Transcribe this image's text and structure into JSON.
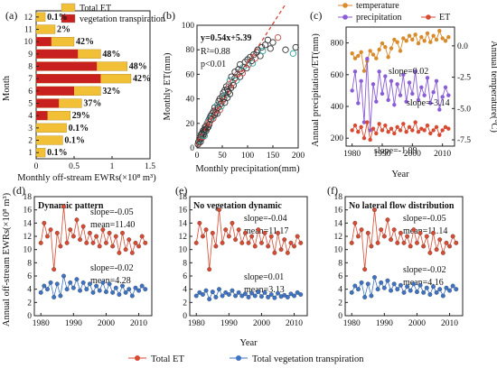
{
  "panels": {
    "a": {
      "label": "(a)",
      "legend": [
        {
          "name": "Total ET",
          "color": "#f2c037"
        },
        {
          "name": "vegetation transpiration",
          "color": "#c8201e"
        }
      ],
      "ylabel": "Month",
      "xlabel": "Monthly off-stream EWRs(×10⁸ m³)"
    },
    "b": {
      "label": "(b)",
      "equation": "y=0.54x+5.39",
      "r2": "R²=0.88",
      "p": "p<0.01",
      "xlabel": "Monthly precipitation(mm)",
      "ylabel": "Monthly ET(mm)"
    },
    "c": {
      "label": "(c)",
      "legend": [
        {
          "name": "temperature",
          "color": "#d98a2b"
        },
        {
          "name": "precipitation",
          "color": "#8a5cd6"
        },
        {
          "name": "ET",
          "color": "#d84a32"
        }
      ],
      "xlabel": "Year",
      "ylabel_left": "Annual precipitation/ET(mm)",
      "ylabel_right": "Annual temperature(°C)",
      "slopes": [
        "slope=0.02",
        "slope=-3.14",
        "slope=-1.09"
      ]
    },
    "d": {
      "label": "(d)",
      "title": "Dynamic pattern",
      "et_slope": "slope=-0.05",
      "et_mean": "mean=11.40",
      "vt_slope": "slope=-0.02",
      "vt_mean": "mean=4.28"
    },
    "e": {
      "label": "(e)",
      "title": "No vegetation dynamic",
      "et_slope": "slope=-0.04",
      "et_mean": "mean=11.17",
      "vt_slope": "slope=0.01",
      "vt_mean": "mean=3.13"
    },
    "f": {
      "label": "(f)",
      "title": "No lateral flow distribution",
      "et_slope": "slope=-0.05",
      "et_mean": "mean=11.14",
      "vt_slope": "slope=-0.02",
      "vt_mean": "mean=4.16"
    }
  },
  "bottom": {
    "ylabel": "Annual off-stream EWRs(×10⁸ m³)",
    "xlabel": "Year",
    "legend": [
      {
        "name": "Total ET",
        "color": "#d84a32"
      },
      {
        "name": "Total vegetation transpiration",
        "color": "#3d73c4"
      }
    ]
  },
  "chart_data": [
    {
      "id": "a",
      "type": "bar",
      "orientation": "horizontal",
      "categories": [
        "1",
        "2",
        "3",
        "4",
        "5",
        "6",
        "7",
        "8",
        "9",
        "10",
        "11",
        "12"
      ],
      "series": [
        {
          "name": "Total ET",
          "values": [
            0.12,
            0.35,
            0.4,
            0.45,
            0.6,
            0.85,
            1.25,
            1.2,
            0.85,
            0.5,
            0.25,
            0.12
          ]
        },
        {
          "name": "vegetation transpiration",
          "values": [
            0.0,
            0.0,
            0.0,
            0.15,
            0.3,
            0.5,
            0.85,
            0.8,
            0.55,
            0.2,
            0.0,
            0.0
          ]
        }
      ],
      "bar_labels": [
        "0.1%",
        "0.1%",
        "0.1%",
        "29%",
        "37%",
        "32%",
        "42%",
        "48%",
        "48%",
        "42%",
        "2%",
        "0.1%"
      ],
      "xlim": [
        0,
        1.5
      ],
      "xticks": [
        "0",
        "0.5",
        "1",
        "1.5"
      ],
      "yticks": [
        "1",
        "2",
        "3",
        "4",
        "5",
        "6",
        "7",
        "8",
        "9",
        "10",
        "11",
        "12"
      ],
      "xlabel": "Monthly off-stream EWRs(×10⁸ m³)",
      "ylabel": "Month"
    },
    {
      "id": "b",
      "type": "scatter",
      "x": [
        2,
        3,
        4,
        5,
        5,
        6,
        7,
        8,
        8,
        9,
        10,
        10,
        12,
        12,
        13,
        14,
        15,
        15,
        16,
        18,
        18,
        20,
        20,
        22,
        22,
        24,
        25,
        25,
        27,
        28,
        30,
        30,
        32,
        33,
        35,
        35,
        37,
        38,
        40,
        40,
        42,
        43,
        45,
        45,
        47,
        48,
        50,
        50,
        52,
        53,
        55,
        55,
        57,
        58,
        60,
        60,
        62,
        63,
        65,
        65,
        67,
        68,
        70,
        72,
        75,
        75,
        78,
        80,
        82,
        85,
        85,
        88,
        90,
        92,
        95,
        98,
        100,
        102,
        105,
        108,
        110,
        112,
        115,
        118,
        120,
        125,
        128,
        130,
        135,
        140,
        145,
        150,
        160,
        175,
        190,
        195
      ],
      "y": [
        3,
        5,
        4,
        6,
        8,
        7,
        5,
        9,
        11,
        8,
        10,
        12,
        9,
        14,
        11,
        13,
        15,
        10,
        17,
        14,
        18,
        16,
        20,
        17,
        22,
        19,
        24,
        21,
        26,
        23,
        28,
        25,
        24,
        30,
        27,
        33,
        29,
        31,
        35,
        28,
        33,
        38,
        31,
        40,
        36,
        34,
        42,
        38,
        45,
        40,
        37,
        47,
        43,
        50,
        41,
        48,
        46,
        52,
        44,
        55,
        49,
        58,
        53,
        51,
        57,
        62,
        55,
        60,
        64,
        58,
        68,
        63,
        61,
        66,
        70,
        65,
        72,
        68,
        74,
        71,
        69,
        76,
        73,
        78,
        80,
        75,
        82,
        79,
        84,
        88,
        81,
        86,
        90,
        80,
        77,
        82
      ],
      "xlim": [
        0,
        200
      ],
      "ylim": [
        0,
        100
      ],
      "xticks": [
        "0",
        "50",
        "100",
        "150",
        "200"
      ],
      "yticks": [
        "0",
        "20",
        "40",
        "60",
        "80",
        "100"
      ],
      "fit": {
        "slope": 0.54,
        "intercept": 5.39
      }
    },
    {
      "id": "c",
      "type": "line",
      "x": [
        1980,
        1981,
        1982,
        1983,
        1984,
        1985,
        1986,
        1987,
        1988,
        1989,
        1990,
        1991,
        1992,
        1993,
        1994,
        1995,
        1996,
        1997,
        1998,
        1999,
        2000,
        2001,
        2002,
        2003,
        2004,
        2005,
        2006,
        2007,
        2008,
        2009,
        2010,
        2011,
        2012
      ],
      "series": [
        {
          "name": "temperature",
          "axis": "right",
          "values": [
            -0.6,
            -1.0,
            -0.8,
            -0.5,
            -2.0,
            -1.2,
            -0.4,
            -0.7,
            -1.0,
            -0.3,
            0.2,
            -0.1,
            -0.9,
            -0.2,
            0.5,
            0.3,
            -0.4,
            0.6,
            0.4,
            0.8,
            0.5,
            0.9,
            0.2,
            0.7,
            0.4,
            1.0,
            0.3,
            0.8,
            0.5,
            1.2,
            0.6,
            0.4,
            0.7
          ]
        },
        {
          "name": "precipitation",
          "axis": "left",
          "values": [
            500,
            620,
            420,
            560,
            300,
            700,
            250,
            540,
            430,
            620,
            480,
            590,
            440,
            560,
            410,
            540,
            470,
            600,
            430,
            550,
            480,
            620,
            440,
            520,
            470,
            580,
            420,
            490,
            560,
            380,
            460,
            520,
            470
          ]
        },
        {
          "name": "ET",
          "axis": "left",
          "values": [
            250,
            280,
            240,
            270,
            200,
            300,
            190,
            260,
            230,
            290,
            250,
            280,
            240,
            260,
            230,
            270,
            250,
            290,
            240,
            270,
            250,
            300,
            240,
            260,
            250,
            280,
            230,
            250,
            270,
            220,
            250,
            270,
            260
          ]
        }
      ],
      "ylim_left": [
        150,
        900
      ],
      "ylim_right": [
        -8,
        1.5
      ],
      "xticks": [
        "1980",
        "1990",
        "2000",
        "2010"
      ],
      "yticks_left": [
        "200",
        "400",
        "600",
        "800"
      ],
      "yticks_right": [
        "0.0",
        "-2.5",
        "-5.0",
        "-7.5"
      ],
      "xlabel": "Year"
    },
    {
      "id": "d",
      "type": "line",
      "x": [
        1980,
        1981,
        1982,
        1983,
        1984,
        1985,
        1986,
        1987,
        1988,
        1989,
        1990,
        1991,
        1992,
        1993,
        1994,
        1995,
        1996,
        1997,
        1998,
        1999,
        2000,
        2001,
        2002,
        2003,
        2004,
        2005,
        2006,
        2007,
        2008,
        2009,
        2010,
        2011,
        2012
      ],
      "series": [
        {
          "name": "Total ET",
          "values": [
            11.0,
            14.0,
            12.0,
            13.0,
            7.0,
            12.5,
            10.5,
            16.5,
            11.0,
            13.0,
            12.0,
            14.5,
            11.5,
            13.5,
            11.0,
            12.5,
            11.0,
            12.0,
            10.5,
            13.0,
            11.0,
            12.5,
            10.5,
            12.0,
            9.5,
            12.5,
            10.0,
            11.5,
            9.5,
            11.0,
            10.5,
            12.0,
            11.0
          ]
        },
        {
          "name": "Total vegetation transpiration",
          "values": [
            3.5,
            4.5,
            4.0,
            5.0,
            2.8,
            4.8,
            3.0,
            6.0,
            4.0,
            5.0,
            4.2,
            5.5,
            3.8,
            5.0,
            4.0,
            4.8,
            3.5,
            4.5,
            3.8,
            5.0,
            3.6,
            4.8,
            3.5,
            4.2,
            3.2,
            4.5,
            3.5,
            4.0,
            3.0,
            4.2,
            3.8,
            4.5,
            4.0
          ]
        }
      ],
      "ylim": [
        0,
        18
      ],
      "yticks": [
        "0",
        "2",
        "4",
        "6",
        "8",
        "10",
        "12",
        "14",
        "16",
        "18"
      ],
      "xticks": [
        "1980",
        "1990",
        "2000",
        "2010"
      ]
    },
    {
      "id": "e",
      "type": "line",
      "x": [
        1980,
        1981,
        1982,
        1983,
        1984,
        1985,
        1986,
        1987,
        1988,
        1989,
        1990,
        1991,
        1992,
        1993,
        1994,
        1995,
        1996,
        1997,
        1998,
        1999,
        2000,
        2001,
        2002,
        2003,
        2004,
        2005,
        2006,
        2007,
        2008,
        2009,
        2010,
        2011,
        2012
      ],
      "series": [
        {
          "name": "Total ET",
          "values": [
            11.0,
            14.0,
            12.0,
            13.0,
            7.0,
            12.5,
            10.5,
            16.0,
            11.0,
            13.0,
            12.0,
            14.0,
            11.5,
            13.0,
            11.0,
            12.5,
            11.0,
            12.0,
            10.5,
            13.0,
            11.0,
            12.5,
            10.5,
            12.0,
            9.5,
            12.5,
            10.0,
            11.5,
            9.5,
            11.0,
            10.5,
            12.0,
            11.0
          ]
        },
        {
          "name": "Total vegetation transpiration",
          "values": [
            3.0,
            3.5,
            3.2,
            3.8,
            2.5,
            3.6,
            2.8,
            4.0,
            3.0,
            3.5,
            3.2,
            3.8,
            3.0,
            3.5,
            3.0,
            3.3,
            2.8,
            3.4,
            3.0,
            3.6,
            2.9,
            3.5,
            2.8,
            3.2,
            2.7,
            3.4,
            2.9,
            3.1,
            2.8,
            3.3,
            3.0,
            3.5,
            3.2
          ]
        }
      ],
      "ylim": [
        0,
        18
      ],
      "yticks": [
        "0",
        "2",
        "4",
        "6",
        "8",
        "10",
        "12",
        "14",
        "16",
        "18"
      ],
      "xticks": [
        "1980",
        "1990",
        "2000",
        "2010"
      ]
    },
    {
      "id": "f",
      "type": "line",
      "x": [
        1980,
        1981,
        1982,
        1983,
        1984,
        1985,
        1986,
        1987,
        1988,
        1989,
        1990,
        1991,
        1992,
        1993,
        1994,
        1995,
        1996,
        1997,
        1998,
        1999,
        2000,
        2001,
        2002,
        2003,
        2004,
        2005,
        2006,
        2007,
        2008,
        2009,
        2010,
        2011,
        2012
      ],
      "series": [
        {
          "name": "Total ET",
          "values": [
            11.0,
            14.0,
            12.0,
            13.0,
            7.0,
            12.5,
            10.5,
            16.0,
            11.0,
            13.0,
            12.0,
            14.5,
            11.5,
            13.0,
            11.0,
            12.5,
            11.0,
            12.0,
            10.5,
            13.0,
            11.0,
            12.5,
            10.5,
            12.0,
            9.5,
            12.5,
            10.0,
            11.5,
            9.5,
            11.0,
            10.5,
            12.0,
            11.0
          ]
        },
        {
          "name": "Total vegetation transpiration",
          "values": [
            3.5,
            4.5,
            4.0,
            5.0,
            2.8,
            4.8,
            3.0,
            5.8,
            4.0,
            5.0,
            4.2,
            5.3,
            3.8,
            4.8,
            4.0,
            4.6,
            3.5,
            4.4,
            3.8,
            4.8,
            3.6,
            4.6,
            3.5,
            4.2,
            3.2,
            4.4,
            3.5,
            4.0,
            3.0,
            4.2,
            3.8,
            4.5,
            4.0
          ]
        }
      ],
      "ylim": [
        0,
        18
      ],
      "yticks": [
        "0",
        "2",
        "4",
        "6",
        "8",
        "10",
        "12",
        "14",
        "16",
        "18"
      ],
      "xticks": [
        "1980",
        "1990",
        "2000",
        "2010"
      ]
    }
  ]
}
